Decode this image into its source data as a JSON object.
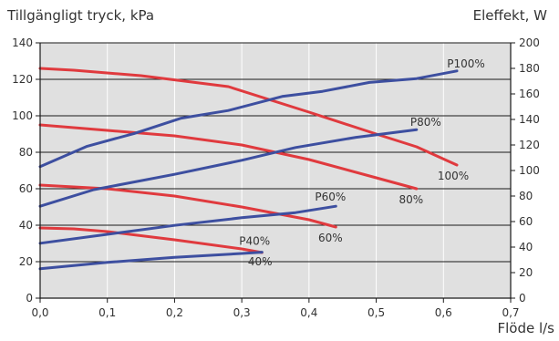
{
  "chart_data": {
    "type": "line",
    "y_left_label": "Tillgängligt tryck, kPa",
    "y_right_label": "Eleffekt, W",
    "xlabel": "Flöde l/s",
    "xlim": [
      0,
      0.7
    ],
    "ylim_left": [
      0,
      140
    ],
    "ylim_right": [
      0,
      200
    ],
    "x_ticks": [
      0,
      0.1,
      0.2,
      0.3,
      0.4,
      0.5,
      0.6,
      0.7
    ],
    "x_tick_labels": [
      "0,0",
      "0,1",
      "0,2",
      "0,3",
      "0,4",
      "0,5",
      "0,6",
      "0,7"
    ],
    "y_left_ticks": [
      0,
      20,
      40,
      60,
      80,
      100,
      120,
      140
    ],
    "y_left_tick_labels": [
      "0",
      "20",
      "40",
      "60",
      "80",
      "100",
      "120",
      "140"
    ],
    "y_right_ticks": [
      0,
      20,
      40,
      60,
      80,
      100,
      120,
      140,
      160,
      180,
      200
    ],
    "y_right_tick_labels": [
      "0",
      "20",
      "40",
      "60",
      "80",
      "100",
      "120",
      "140",
      "160",
      "180",
      "200"
    ],
    "grid": "horizontal",
    "colors": {
      "pressure": "#e03a3e",
      "power": "#3d4fa0",
      "plot_bg": "#e0e0e0",
      "grid": "#1a1a1a"
    },
    "series": [
      {
        "name": "100%",
        "axis": "left",
        "color": "#e03a3e",
        "x": [
          0,
          0.05,
          0.15,
          0.28,
          0.4,
          0.5,
          0.56,
          0.62
        ],
        "y": [
          126,
          125,
          122,
          116,
          102,
          90,
          83,
          73
        ]
      },
      {
        "name": "80%",
        "axis": "left",
        "color": "#e03a3e",
        "x": [
          0,
          0.1,
          0.2,
          0.3,
          0.4,
          0.5,
          0.56
        ],
        "y": [
          95,
          92,
          89,
          84,
          76,
          66,
          60
        ]
      },
      {
        "name": "60%",
        "axis": "left",
        "color": "#e03a3e",
        "x": [
          0,
          0.1,
          0.2,
          0.3,
          0.4,
          0.44
        ],
        "y": [
          62,
          60,
          56,
          50,
          43,
          39
        ]
      },
      {
        "name": "40%",
        "axis": "left",
        "color": "#e03a3e",
        "x": [
          0,
          0.05,
          0.1,
          0.2,
          0.3,
          0.33
        ],
        "y": [
          38.5,
          38,
          36.5,
          32,
          27,
          25
        ]
      },
      {
        "name": "P100%",
        "axis": "right",
        "color": "#3d4fa0",
        "x": [
          0,
          0.07,
          0.14,
          0.21,
          0.28,
          0.36,
          0.42,
          0.49,
          0.56,
          0.62
        ],
        "y": [
          103,
          119,
          129,
          141,
          147,
          158,
          162,
          169,
          172,
          178
        ]
      },
      {
        "name": "P80%",
        "axis": "right",
        "color": "#3d4fa0",
        "x": [
          0,
          0.08,
          0.2,
          0.3,
          0.38,
          0.47,
          0.56
        ],
        "y": [
          72,
          85,
          97,
          108,
          118,
          126,
          132
        ]
      },
      {
        "name": "P60%",
        "axis": "right",
        "color": "#3d4fa0",
        "x": [
          0,
          0.1,
          0.2,
          0.3,
          0.38,
          0.44
        ],
        "y": [
          43,
          50,
          57,
          63,
          67,
          72
        ]
      },
      {
        "name": "P40%",
        "axis": "right",
        "color": "#3d4fa0",
        "x": [
          0,
          0.1,
          0.2,
          0.3,
          0.33
        ],
        "y": [
          23,
          28,
          32,
          35,
          36
        ]
      }
    ]
  }
}
